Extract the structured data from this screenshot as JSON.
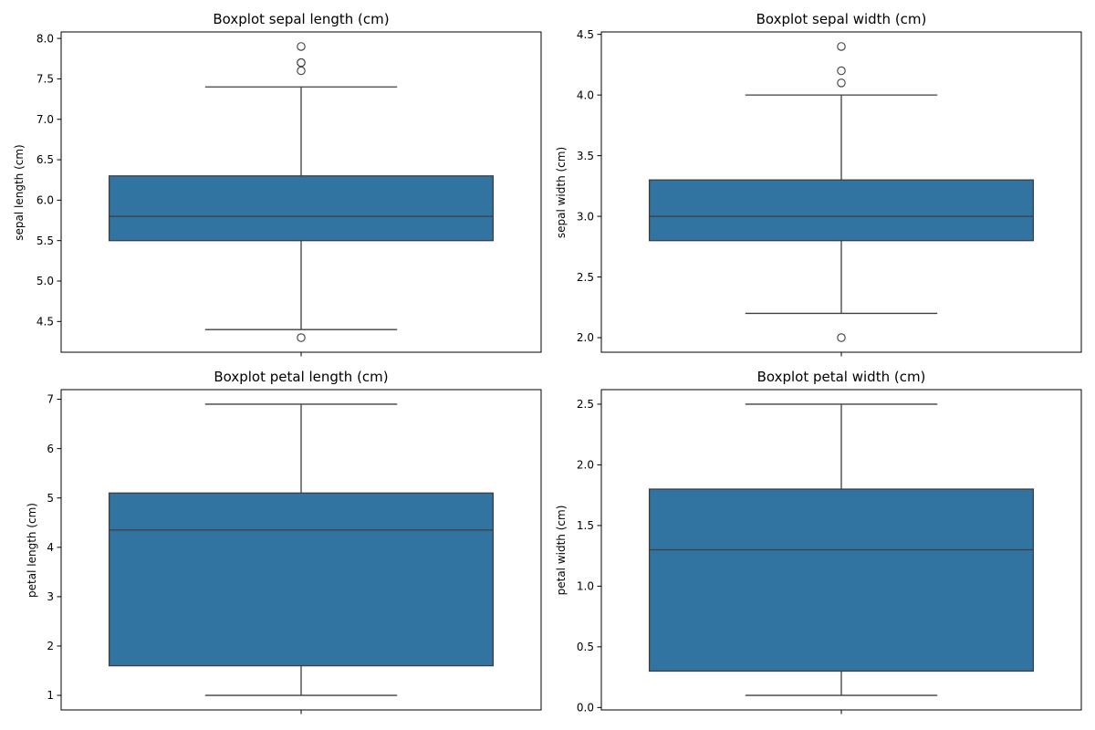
{
  "chart_data": [
    {
      "type": "box",
      "title": "Boxplot sepal length (cm)",
      "xlabel": "",
      "ylabel": "sepal length (cm)",
      "ylim": [
        4.12,
        8.08
      ],
      "yticks": [
        4.5,
        5.0,
        5.5,
        6.0,
        6.5,
        7.0,
        7.5,
        8.0
      ],
      "ytick_labels": [
        "4.5",
        "5.0",
        "5.5",
        "6.0",
        "6.5",
        "7.0",
        "7.5",
        "8.0"
      ],
      "box": {
        "whisker_low": 4.4,
        "q1": 5.5,
        "median": 5.8,
        "q3": 6.3,
        "whisker_high": 7.4,
        "outliers": [
          4.3,
          7.6,
          7.7,
          7.7,
          7.9
        ]
      },
      "grid": false,
      "box_color": "#3274a1",
      "line_color": "#3f3f3f"
    },
    {
      "type": "box",
      "title": "Boxplot sepal width (cm)",
      "xlabel": "",
      "ylabel": "sepal width (cm)",
      "ylim": [
        1.88,
        4.52
      ],
      "yticks": [
        2.0,
        2.5,
        3.0,
        3.5,
        4.0,
        4.5
      ],
      "ytick_labels": [
        "2.0",
        "2.5",
        "3.0",
        "3.5",
        "4.0",
        "4.5"
      ],
      "box": {
        "whisker_low": 2.2,
        "q1": 2.8,
        "median": 3.0,
        "q3": 3.3,
        "whisker_high": 4.0,
        "outliers": [
          2.0,
          4.1,
          4.2,
          4.4
        ]
      },
      "grid": false,
      "box_color": "#3274a1",
      "line_color": "#3f3f3f"
    },
    {
      "type": "box",
      "title": "Boxplot petal length (cm)",
      "xlabel": "",
      "ylabel": "petal length (cm)",
      "ylim": [
        0.705,
        7.195
      ],
      "yticks": [
        1,
        2,
        3,
        4,
        5,
        6,
        7
      ],
      "ytick_labels": [
        "1",
        "2",
        "3",
        "4",
        "5",
        "6",
        "7"
      ],
      "box": {
        "whisker_low": 1.0,
        "q1": 1.6,
        "median": 4.35,
        "q3": 5.1,
        "whisker_high": 6.9,
        "outliers": []
      },
      "grid": false,
      "box_color": "#3274a1",
      "line_color": "#3f3f3f"
    },
    {
      "type": "box",
      "title": "Boxplot petal width (cm)",
      "xlabel": "",
      "ylabel": "petal width (cm)",
      "ylim": [
        -0.02,
        2.62
      ],
      "yticks": [
        0.0,
        0.5,
        1.0,
        1.5,
        2.0,
        2.5
      ],
      "ytick_labels": [
        "0.0",
        "0.5",
        "1.0",
        "1.5",
        "2.0",
        "2.5"
      ],
      "box": {
        "whisker_low": 0.1,
        "q1": 0.3,
        "median": 1.3,
        "q3": 1.8,
        "whisker_high": 2.5,
        "outliers": []
      },
      "grid": false,
      "box_color": "#3274a1",
      "line_color": "#3f3f3f"
    }
  ]
}
